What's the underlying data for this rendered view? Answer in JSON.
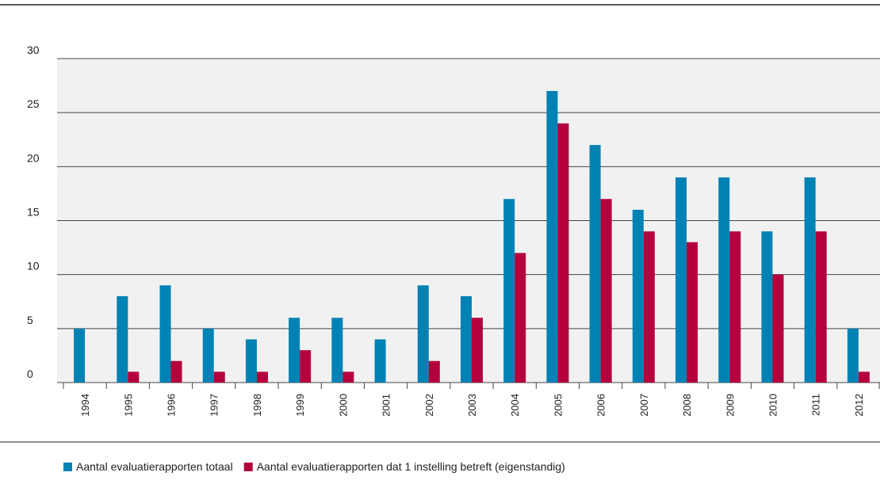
{
  "chart_data": {
    "type": "bar",
    "categories": [
      "1994",
      "1995",
      "1996",
      "1997",
      "1998",
      "1999",
      "2000",
      "2001",
      "2002",
      "2003",
      "2004",
      "2005",
      "2006",
      "2007",
      "2008",
      "2009",
      "2010",
      "2011",
      "2012"
    ],
    "series": [
      {
        "name": "Aantal evaluatierapporten totaal",
        "color": "#0082b4",
        "values": [
          5,
          8,
          9,
          5,
          4,
          6,
          6,
          4,
          9,
          8,
          17,
          27,
          22,
          16,
          19,
          19,
          14,
          19,
          5
        ]
      },
      {
        "name": "Aantal evaluatierapporten dat 1 instelling betreft (eigenstandig)",
        "color": "#b4003c",
        "values": [
          0,
          1,
          2,
          1,
          1,
          3,
          1,
          0,
          2,
          6,
          12,
          24,
          17,
          14,
          13,
          14,
          10,
          14,
          1
        ]
      }
    ],
    "ylim": [
      0,
      30
    ],
    "yticks": [
      0,
      5,
      10,
      15,
      20,
      25,
      30
    ],
    "grid": true,
    "legend": "bottom"
  }
}
